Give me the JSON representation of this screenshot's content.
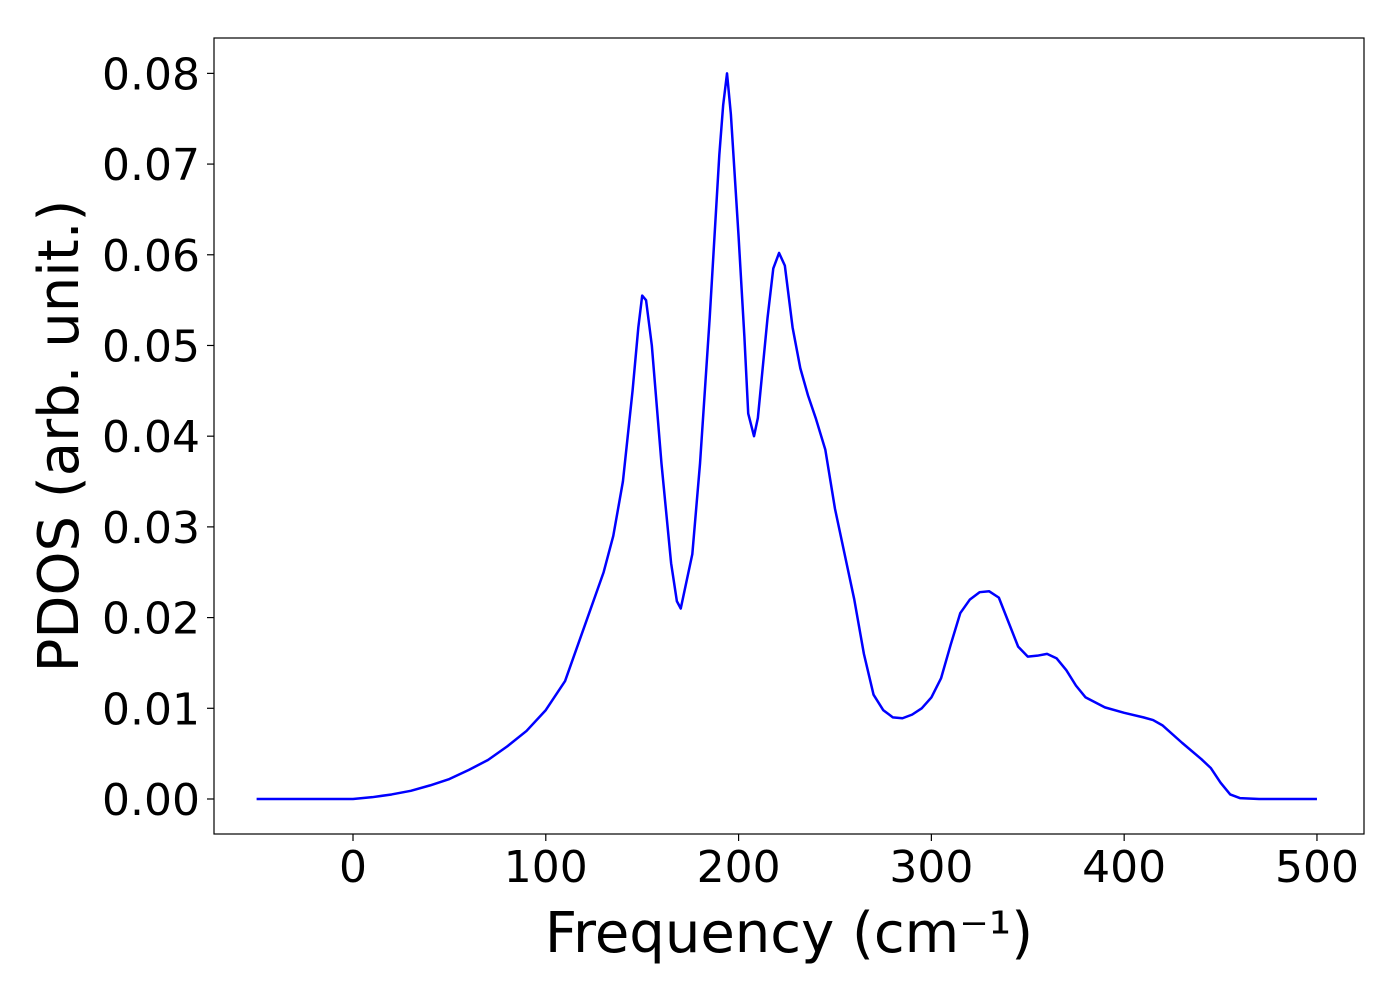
{
  "chart_data": {
    "type": "line",
    "xlabel": "Frequency (cm⁻¹)",
    "ylabel": "PDOS (arb. unit.)",
    "color": "#0000ff",
    "x": [
      -50,
      0,
      10,
      20,
      30,
      40,
      50,
      60,
      70,
      80,
      90,
      100,
      110,
      120,
      130,
      135,
      140,
      145,
      148,
      150,
      152,
      155,
      160,
      165,
      168,
      170,
      172,
      176,
      180,
      185,
      190,
      192,
      194,
      196,
      200,
      203,
      205,
      208,
      210,
      215,
      218,
      221,
      224,
      228,
      232,
      236,
      240,
      245,
      250,
      255,
      260,
      265,
      270,
      275,
      280,
      285,
      290,
      295,
      300,
      305,
      310,
      315,
      320,
      325,
      330,
      335,
      340,
      345,
      350,
      355,
      360,
      365,
      370,
      375,
      380,
      390,
      400,
      410,
      415,
      420,
      430,
      440,
      445,
      450,
      455,
      460,
      470,
      500
    ],
    "values": [
      0,
      0,
      0.0002,
      0.0005,
      0.0009,
      0.0015,
      0.0022,
      0.0032,
      0.0043,
      0.0058,
      0.0075,
      0.0098,
      0.013,
      0.019,
      0.025,
      0.029,
      0.035,
      0.045,
      0.052,
      0.0555,
      0.055,
      0.05,
      0.037,
      0.026,
      0.0218,
      0.021,
      0.023,
      0.027,
      0.037,
      0.053,
      0.071,
      0.0765,
      0.08,
      0.0755,
      0.062,
      0.051,
      0.0425,
      0.04,
      0.042,
      0.053,
      0.0585,
      0.0602,
      0.0588,
      0.052,
      0.0475,
      0.0445,
      0.042,
      0.0385,
      0.032,
      0.027,
      0.022,
      0.016,
      0.0115,
      0.0098,
      0.009,
      0.0089,
      0.0093,
      0.01,
      0.0112,
      0.0133,
      0.017,
      0.0205,
      0.022,
      0.0228,
      0.0229,
      0.0222,
      0.0195,
      0.0168,
      0.0157,
      0.0158,
      0.016,
      0.0155,
      0.0142,
      0.0125,
      0.0112,
      0.0101,
      0.0095,
      0.009,
      0.0087,
      0.0081,
      0.0062,
      0.0044,
      0.0034,
      0.0018,
      0.0005,
      0.0001,
      0,
      0
    ],
    "xlim": [
      -72.1,
      524.4
    ],
    "ylim": [
      -0.00386,
      0.0839
    ],
    "xticks": [
      0,
      100,
      200,
      300,
      400,
      500
    ],
    "yticks": [
      {
        "value": 0,
        "label": "0.00"
      },
      0.01,
      0.02,
      0.03,
      0.04,
      0.05,
      0.06,
      0.07,
      0.08
    ]
  }
}
